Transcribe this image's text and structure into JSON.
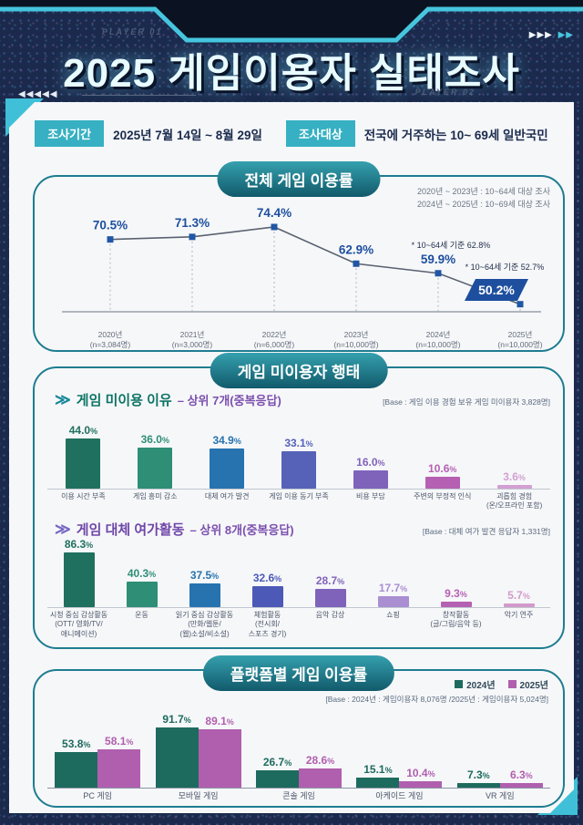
{
  "header": {
    "player1": "PLAYER 01",
    "player2": "PLAYER 02",
    "title": "2025 게임이용자 실태조사",
    "left_arrows": "◀◀◀◀◀",
    "right_arrows_white": "▶▶▶",
    "right_arrows_cyan": "▶▶"
  },
  "survey_info": {
    "period_label": "조사기간",
    "period_value": "2025년 7월 14일 ~ 8월 29일",
    "target_label": "조사대상",
    "target_value": "전국에 거주하는 10~ 69세 일반국민"
  },
  "sections": {
    "overall": {
      "title": "전체 게임 이용률"
    },
    "nonuser": {
      "title": "게임 미이용자 행태"
    },
    "platform": {
      "title": "플랫폼별 게임 이용률"
    }
  },
  "misc": {
    "chevron": "≫"
  },
  "colors": {
    "navy_bg": "#1b2a4c",
    "hud_cyan": "#46c6de",
    "badge_teal": "#36b0c2",
    "section_border": "#1e7d90",
    "pill_teal_dark": "#115a6b"
  },
  "chart_data": [
    {
      "id": "overall-usage-line",
      "type": "line",
      "title": "전체 게임 이용률",
      "notes": [
        "2020년 ~ 2023년 : 10~64세 대상 조사",
        "2024년 ~ 2025년 : 10~69세 대상 조사"
      ],
      "categories": [
        "2020년",
        "2021년",
        "2022년",
        "2023년",
        "2024년",
        "2025년"
      ],
      "sample_sizes": [
        "(n=3,084명)",
        "(n=3,000명)",
        "(n=6,000명)",
        "(n=10,000명)",
        "(n=10,000명)",
        "(n=10,000명)"
      ],
      "values": [
        70.5,
        71.3,
        74.4,
        62.9,
        59.9,
        50.2
      ],
      "unit": "%",
      "annotations": [
        {
          "point_index": 4,
          "text": "* 10~64세 기준 62.8%"
        },
        {
          "point_index": 5,
          "text": "* 10~64세 기준 52.7%"
        }
      ],
      "highlight_last_point": true,
      "marker_color": "#2156a5",
      "label_color": "#1d4f9e",
      "line_color": "#5a6270",
      "badge_color": "#1d4f9e",
      "ylim": [
        45,
        80
      ],
      "grid": false,
      "legend_position": "none"
    },
    {
      "id": "non-use-reasons-bar",
      "type": "bar",
      "heading": "게임 미이용 이유",
      "heading_suffix": "– 상위 7개(중복응답)",
      "base_note": "[Base : 게임 이용 경험 보유 게임 미이용자 3,828명]",
      "categories": [
        "이용 시간 부족",
        "게임 흥미 감소",
        "대체 여가 발견",
        "게임 이용 동기 부족",
        "비용 부담",
        "주변의 부정적 인식",
        "괴롭힘 경험\n(온/오프라인 포함)"
      ],
      "values": [
        44.0,
        36.0,
        34.9,
        33.1,
        16.0,
        10.6,
        3.6
      ],
      "unit": "%",
      "bar_colors": [
        "#20705f",
        "#2e8e76",
        "#2673b0",
        "#5562b8",
        "#7f63ba",
        "#b560b2",
        "#d2a0d2"
      ],
      "ylim": [
        0,
        50
      ],
      "grid": false
    },
    {
      "id": "alternative-leisure-bar",
      "type": "bar",
      "heading": "게임 대체 여가활동",
      "heading_suffix": "– 상위 8개(중복응답)",
      "base_note": "[Base : 대체 여가 발견 응답자 1,331명]",
      "categories": [
        "시청 중심 감상활동\n(OTT/ 영화/TV/\n애니메이션)",
        "운동",
        "읽기 중심 감상활동\n(만화/웹툰/\n(웹)소설/비소설)",
        "체험활동\n(전시회/\n스포츠 경기)",
        "음악 감상",
        "쇼핑",
        "창작활동\n(글/그림/음악 등)",
        "악기 연주"
      ],
      "values": [
        86.3,
        40.3,
        37.5,
        32.6,
        28.7,
        17.7,
        9.3,
        5.7
      ],
      "unit": "%",
      "bar_colors": [
        "#20705f",
        "#2e8e76",
        "#2673b0",
        "#4c59b6",
        "#7f63ba",
        "#a98ed2",
        "#b560b2",
        "#d29aca"
      ],
      "ylim": [
        0,
        90
      ],
      "grid": false
    },
    {
      "id": "platform-usage-grouped-bar",
      "type": "grouped_bar",
      "title": "플랫폼별 게임 이용률",
      "base_note": "[Base : 2024년 : 게임이용자 8,076명 /2025년 : 게임이용자 5,024명]",
      "categories": [
        "PC 게임",
        "모바일 게임",
        "콘솔 게임",
        "아케이드 게임",
        "VR 게임"
      ],
      "series": [
        {
          "name": "2024년",
          "color": "#1d6b5e",
          "values": [
            53.8,
            91.7,
            26.7,
            15.1,
            7.3
          ]
        },
        {
          "name": "2025년",
          "color": "#b05fae",
          "values": [
            58.1,
            89.1,
            28.6,
            10.4,
            6.3
          ]
        }
      ],
      "unit": "%",
      "legend_position": "top-right",
      "ylim": [
        0,
        100
      ],
      "grid": false
    }
  ]
}
